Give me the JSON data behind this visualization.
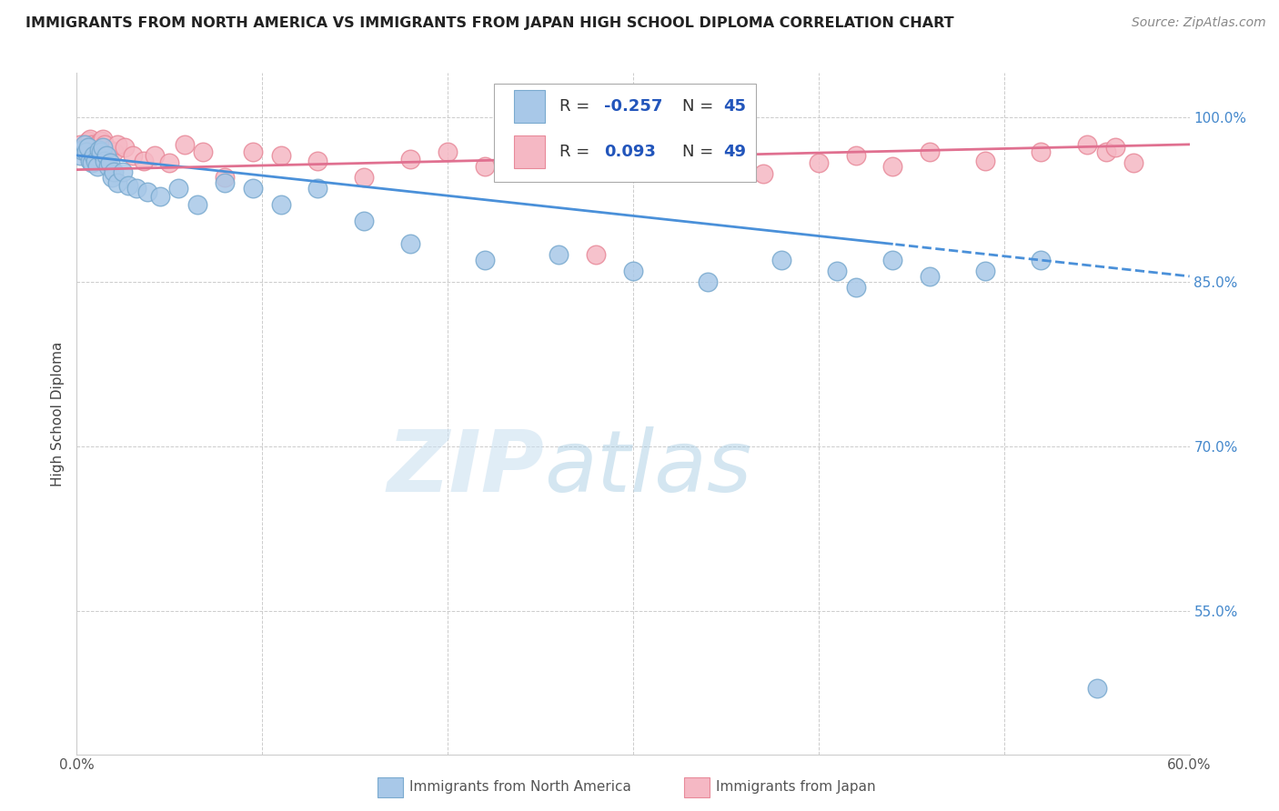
{
  "title": "IMMIGRANTS FROM NORTH AMERICA VS IMMIGRANTS FROM JAPAN HIGH SCHOOL DIPLOMA CORRELATION CHART",
  "source": "Source: ZipAtlas.com",
  "xlabel_blue": "Immigrants from North America",
  "xlabel_pink": "Immigrants from Japan",
  "ylabel": "High School Diploma",
  "xlim": [
    0.0,
    0.6
  ],
  "ylim": [
    0.42,
    1.04
  ],
  "yticks": [
    0.55,
    0.7,
    0.85,
    1.0
  ],
  "ytick_labels": [
    "55.0%",
    "70.0%",
    "85.0%",
    "100.0%"
  ],
  "R_blue": -0.257,
  "N_blue": 45,
  "R_pink": 0.093,
  "N_pink": 49,
  "blue_color": "#a8c8e8",
  "blue_edge": "#7aaacf",
  "pink_color": "#f5b8c4",
  "pink_edge": "#e88a9a",
  "blue_line_color": "#4a90d9",
  "pink_line_color": "#e07090",
  "watermark_zip": "ZIP",
  "watermark_atlas": "atlas",
  "blue_x": [
    0.002,
    0.003,
    0.004,
    0.005,
    0.006,
    0.007,
    0.008,
    0.009,
    0.01,
    0.011,
    0.012,
    0.013,
    0.014,
    0.015,
    0.016,
    0.017,
    0.018,
    0.019,
    0.02,
    0.022,
    0.025,
    0.028,
    0.032,
    0.038,
    0.045,
    0.055,
    0.065,
    0.08,
    0.095,
    0.11,
    0.13,
    0.155,
    0.18,
    0.22,
    0.26,
    0.3,
    0.34,
    0.38,
    0.41,
    0.42,
    0.44,
    0.46,
    0.49,
    0.52,
    0.55
  ],
  "blue_y": [
    0.965,
    0.97,
    0.975,
    0.968,
    0.972,
    0.96,
    0.958,
    0.965,
    0.96,
    0.955,
    0.97,
    0.968,
    0.972,
    0.96,
    0.965,
    0.955,
    0.958,
    0.945,
    0.95,
    0.94,
    0.95,
    0.938,
    0.935,
    0.932,
    0.928,
    0.935,
    0.92,
    0.94,
    0.935,
    0.92,
    0.935,
    0.905,
    0.885,
    0.87,
    0.875,
    0.86,
    0.85,
    0.87,
    0.86,
    0.845,
    0.87,
    0.855,
    0.86,
    0.87,
    0.48
  ],
  "pink_x": [
    0.002,
    0.003,
    0.004,
    0.005,
    0.006,
    0.007,
    0.008,
    0.009,
    0.01,
    0.011,
    0.012,
    0.013,
    0.014,
    0.015,
    0.016,
    0.018,
    0.02,
    0.022,
    0.026,
    0.03,
    0.036,
    0.042,
    0.05,
    0.058,
    0.068,
    0.08,
    0.095,
    0.11,
    0.13,
    0.155,
    0.18,
    0.2,
    0.22,
    0.24,
    0.26,
    0.28,
    0.31,
    0.34,
    0.37,
    0.4,
    0.42,
    0.44,
    0.46,
    0.49,
    0.52,
    0.545,
    0.555,
    0.56,
    0.57
  ],
  "pink_y": [
    0.975,
    0.97,
    0.968,
    0.972,
    0.978,
    0.98,
    0.975,
    0.972,
    0.968,
    0.975,
    0.972,
    0.978,
    0.98,
    0.975,
    0.965,
    0.97,
    0.968,
    0.975,
    0.972,
    0.965,
    0.96,
    0.965,
    0.958,
    0.975,
    0.968,
    0.945,
    0.968,
    0.965,
    0.96,
    0.945,
    0.962,
    0.968,
    0.955,
    0.968,
    0.955,
    0.875,
    0.968,
    0.96,
    0.948,
    0.958,
    0.965,
    0.955,
    0.968,
    0.96,
    0.968,
    0.975,
    0.968,
    0.972,
    0.958
  ]
}
